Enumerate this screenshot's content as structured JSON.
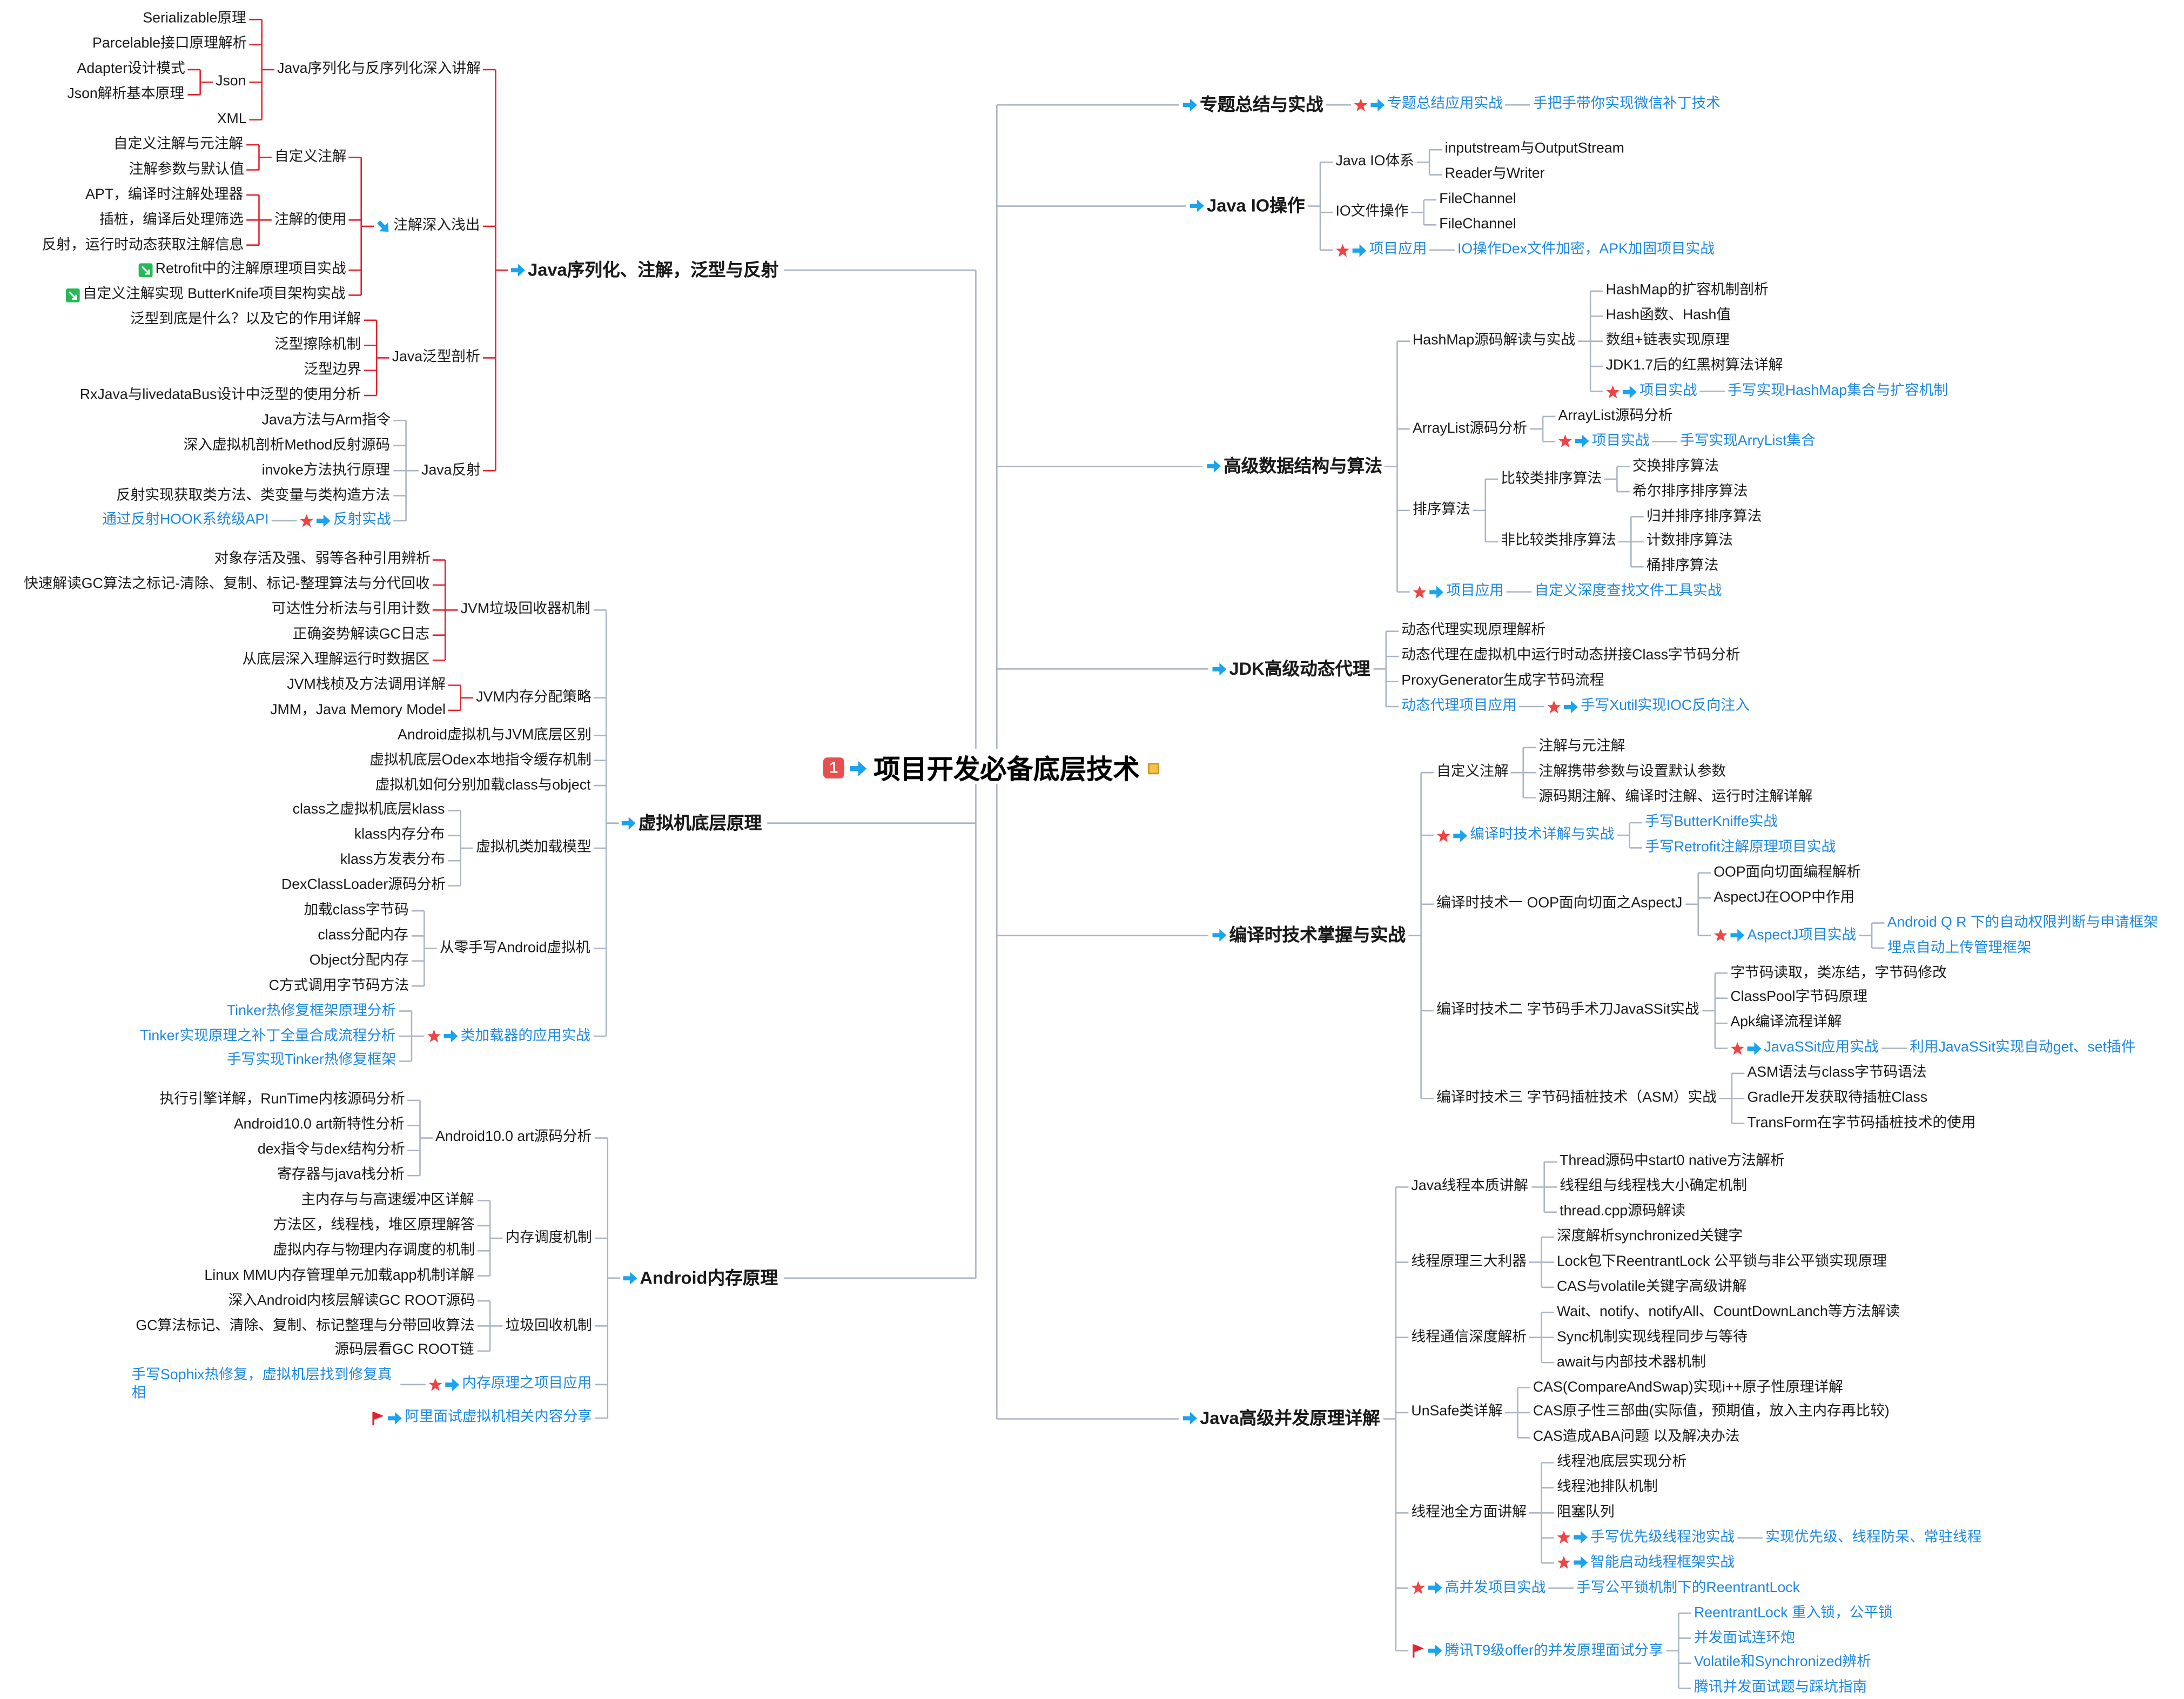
{
  "root": {
    "text": "项目开发必备底层技术",
    "priority": "1",
    "note_icon": "note-icon"
  },
  "colors": {
    "link": "#1e88e5",
    "line": "#aab4c5",
    "bracket_red": "#e3212d",
    "arrow": "#1aa3ee",
    "star": "#ef4444",
    "flag": "#e3212d",
    "green": "#22bb55"
  },
  "right": [
    {
      "text": "专题总结与实战",
      "icon": [
        "arrow"
      ],
      "children": [
        {
          "text": "专题总结应用实战",
          "icon": [
            "star",
            "arrow"
          ],
          "link": true,
          "children": [
            {
              "text": "手把手带你实现微信补丁技术",
              "link": true
            }
          ]
        }
      ]
    },
    {
      "text": "Java IO操作",
      "icon": [
        "arrow"
      ],
      "children": [
        {
          "text": "Java IO体系",
          "children": [
            {
              "text": "inputstream与OutputStream"
            },
            {
              "text": "Reader与Writer"
            }
          ]
        },
        {
          "text": "IO文件操作",
          "children": [
            {
              "text": "FileChannel"
            },
            {
              "text": "FileChannel"
            }
          ]
        },
        {
          "text": "项目应用",
          "icon": [
            "star",
            "arrow"
          ],
          "link": true,
          "children": [
            {
              "text": "IO操作Dex文件加密，APK加固项目实战",
              "link": true
            }
          ]
        }
      ]
    },
    {
      "text": "高级数据结构与算法",
      "icon": [
        "arrow"
      ],
      "children": [
        {
          "text": "HashMap源码解读与实战",
          "children": [
            {
              "text": "HashMap的扩容机制剖析"
            },
            {
              "text": "Hash函数、Hash值"
            },
            {
              "text": "数组+链表实现原理"
            },
            {
              "text": "JDK1.7后的红黑树算法详解"
            },
            {
              "text": "项目实战",
              "icon": [
                "star",
                "arrow"
              ],
              "link": true,
              "children": [
                {
                  "text": "手写实现HashMap集合与扩容机制",
                  "link": true
                }
              ]
            }
          ]
        },
        {
          "text": "ArrayList源码分析",
          "children": [
            {
              "text": "ArrayList源码分析"
            },
            {
              "text": "项目实战",
              "icon": [
                "star",
                "arrow"
              ],
              "link": true,
              "children": [
                {
                  "text": "手写实现ArryList集合",
                  "link": true
                }
              ]
            }
          ]
        },
        {
          "text": "排序算法",
          "children": [
            {
              "text": "比较类排序算法",
              "children": [
                {
                  "text": "交换排序算法"
                },
                {
                  "text": "希尔排序排序算法"
                }
              ]
            },
            {
              "text": "非比较类排序算法",
              "children": [
                {
                  "text": "归并排序排序算法"
                },
                {
                  "text": "计数排序算法"
                },
                {
                  "text": "桶排序算法"
                }
              ]
            }
          ]
        },
        {
          "text": "项目应用",
          "icon": [
            "star",
            "arrow"
          ],
          "link": true,
          "children": [
            {
              "text": "自定义深度查找文件工具实战",
              "link": true
            }
          ]
        }
      ]
    },
    {
      "text": "JDK高级动态代理",
      "icon": [
        "arrow"
      ],
      "children": [
        {
          "text": "动态代理实现原理解析"
        },
        {
          "text": "动态代理在虚拟机中运行时动态拼接Class字节码分析"
        },
        {
          "text": "ProxyGenerator生成字节码流程"
        },
        {
          "text": "动态代理项目应用",
          "link": true,
          "children": [
            {
              "text": "手写Xutil实现IOC反向注入",
              "icon": [
                "star",
                "arrow"
              ],
              "link": true
            }
          ]
        }
      ]
    },
    {
      "text": "编译时技术掌握与实战",
      "icon": [
        "arrow"
      ],
      "children": [
        {
          "text": "自定义注解",
          "children": [
            {
              "text": "注解与元注解"
            },
            {
              "text": "注解携带参数与设置默认参数"
            },
            {
              "text": "源码期注解、编译时注解、运行时注解详解"
            }
          ]
        },
        {
          "text": "编译时技术详解与实战",
          "icon": [
            "star",
            "arrow"
          ],
          "link": true,
          "children": [
            {
              "text": "手写ButterKniffe实战",
              "link": true
            },
            {
              "text": "手写Retrofit注解原理项目实战",
              "link": true
            }
          ]
        },
        {
          "text": "编译时技术一 OOP面向切面之AspectJ",
          "children": [
            {
              "text": "OOP面向切面编程解析"
            },
            {
              "text": "AspectJ在OOP中作用"
            },
            {
              "text": "AspectJ项目实战",
              "icon": [
                "star",
                "arrow"
              ],
              "link": true,
              "children": [
                {
                  "text": "Android Q R 下的自动权限判断与申请框架",
                  "link": true
                },
                {
                  "text": "埋点自动上传管理框架",
                  "link": true
                }
              ]
            }
          ]
        },
        {
          "text": "编译时技术二 字节码手术刀JavaSSit实战",
          "children": [
            {
              "text": "字节码读取，类冻结，字节码修改"
            },
            {
              "text": "ClassPool字节码原理"
            },
            {
              "text": "Apk编译流程详解"
            },
            {
              "text": "JavaSSit应用实战",
              "icon": [
                "star",
                "arrow"
              ],
              "link": true,
              "children": [
                {
                  "text": "利用JavaSSit实现自动get、set插件",
                  "link": true
                }
              ]
            }
          ]
        },
        {
          "text": "编译时技术三 字节码插桩技术（ASM）实战",
          "children": [
            {
              "text": "ASM语法与class字节码语法"
            },
            {
              "text": "Gradle开发获取待插桩Class"
            },
            {
              "text": "TransForm在字节码插桩技术的使用"
            }
          ]
        }
      ]
    },
    {
      "text": "Java高级并发原理详解",
      "icon": [
        "arrow"
      ],
      "children": [
        {
          "text": "Java线程本质讲解",
          "children": [
            {
              "text": "Thread源码中start0  native方法解析"
            },
            {
              "text": "线程组与线程栈大小确定机制"
            },
            {
              "text": "thread.cpp源码解读"
            }
          ]
        },
        {
          "text": "线程原理三大利器",
          "children": [
            {
              "text": "深度解析synchronized关键字"
            },
            {
              "text": "Lock包下ReentrantLock 公平锁与非公平锁实现原理"
            },
            {
              "text": "CAS与volatile关键字高级讲解"
            }
          ]
        },
        {
          "text": "线程通信深度解析",
          "children": [
            {
              "text": "Wait、notify、notifyAll、CountDownLanch等方法解读"
            },
            {
              "text": "Sync机制实现线程同步与等待"
            },
            {
              "text": "await与内部技术器机制"
            }
          ]
        },
        {
          "text": "UnSafe类详解",
          "children": [
            {
              "text": "CAS(CompareAndSwap)实现i++原子性原理详解"
            },
            {
              "text": "CAS原子性三部曲(实际值，预期值，放入主内存再比较)"
            },
            {
              "text": "CAS造成ABA问题  以及解决办法"
            }
          ]
        },
        {
          "text": "线程池全方面讲解",
          "children": [
            {
              "text": "线程池底层实现分析"
            },
            {
              "text": "线程池排队机制"
            },
            {
              "text": "阻塞队列"
            },
            {
              "text": "手写优先级线程池实战",
              "icon": [
                "star",
                "arrow"
              ],
              "link": true,
              "children": [
                {
                  "text": "实现优先级、线程防呆、常驻线程",
                  "link": true
                }
              ]
            },
            {
              "text": "智能启动线程框架实战",
              "icon": [
                "star",
                "arrow"
              ],
              "link": true
            }
          ]
        },
        {
          "text": "高并发项目实战",
          "icon": [
            "star",
            "arrow"
          ],
          "link": true,
          "children": [
            {
              "text": "手写公平锁机制下的ReentrantLock",
              "link": true
            }
          ]
        },
        {
          "text": "腾讯T9级offer的并发原理面试分享",
          "icon": [
            "flag",
            "arrow"
          ],
          "link": true,
          "children": [
            {
              "text": "ReentrantLock 重入锁，公平锁",
              "link": true
            },
            {
              "text": "并发面试连环炮",
              "link": true
            },
            {
              "text": "Volatile和Synchronized辨析",
              "link": true
            },
            {
              "text": "腾讯并发面试题与踩坑指南",
              "link": true
            }
          ]
        }
      ]
    }
  ],
  "left": [
    {
      "text": "Java序列化、注解，泛型与反射",
      "icon": [
        "arrow"
      ],
      "bracket": "#e3212d",
      "children": [
        {
          "text": "Java序列化与反序列化深入讲解",
          "bracket": "#e3212d",
          "children": [
            {
              "text": "Serializable原理"
            },
            {
              "text": "Parcelable接口原理解析"
            },
            {
              "text": "Json",
              "bracket": "#e3212d",
              "children": [
                {
                  "text": "Adapter设计模式"
                },
                {
                  "text": "Json解析基本原理"
                }
              ]
            },
            {
              "text": "XML"
            }
          ]
        },
        {
          "text": "注解深入浅出",
          "icon": [
            "down-arrow"
          ],
          "bracket": "#e3212d",
          "children": [
            {
              "text": "自定义注解",
              "bracket": "#e3212d",
              "children": [
                {
                  "text": "自定义注解与元注解"
                },
                {
                  "text": "注解参数与默认值"
                }
              ]
            },
            {
              "text": "注解的使用",
              "bracket": "#e3212d",
              "children": [
                {
                  "text": "APT，编译时注解处理器"
                },
                {
                  "text": "插桩，编译后处理筛选"
                },
                {
                  "text": "反射，运行时动态获取注解信息"
                }
              ]
            },
            {
              "text": "Retrofit中的注解原理项目实战",
              "icon": [
                "green"
              ]
            },
            {
              "text": "自定义注解实现 ButterKnife项目架构实战",
              "icon": [
                "green"
              ]
            }
          ]
        },
        {
          "text": "Java泛型剖析",
          "bracket": "#e3212d",
          "children": [
            {
              "text": "泛型到底是什么？以及它的作用详解"
            },
            {
              "text": "泛型擦除机制"
            },
            {
              "text": "泛型边界"
            },
            {
              "text": "RxJava与livedataBus设计中泛型的使用分析"
            }
          ]
        },
        {
          "text": "Java反射",
          "children": [
            {
              "text": "Java方法与Arm指令"
            },
            {
              "text": "深入虚拟机剖析Method反射源码"
            },
            {
              "text": "invoke方法执行原理"
            },
            {
              "text": "反射实现获取类方法、类变量与类构造方法"
            },
            {
              "text": "反射实战",
              "icon": [
                "star",
                "arrow"
              ],
              "link": true,
              "children": [
                {
                  "text": "通过反射HOOK系统级API",
                  "link": true
                }
              ]
            }
          ]
        }
      ]
    },
    {
      "text": "虚拟机底层原理",
      "icon": [
        "arrow"
      ],
      "children": [
        {
          "text": "JVM垃圾回收器机制",
          "bracket": "#e3212d",
          "children": [
            {
              "text": "对象存活及强、弱等各种引用辨析"
            },
            {
              "text": "快速解读GC算法之标记-清除、复制、标记-整理算法与分代回收"
            },
            {
              "text": "可达性分析法与引用计数"
            },
            {
              "text": "正确姿势解读GC日志"
            },
            {
              "text": "从底层深入理解运行时数据区"
            }
          ]
        },
        {
          "text": "JVM内存分配策略",
          "bracket": "#e3212d",
          "children": [
            {
              "text": "JVM栈桢及方法调用详解"
            },
            {
              "text": "JMM，Java Memory Model"
            }
          ]
        },
        {
          "text": "Android虚拟机与JVM底层区别"
        },
        {
          "text": "虚拟机底层Odex本地指令缓存机制"
        },
        {
          "text": "虚拟机如何分别加载class与object"
        },
        {
          "text": "虚拟机类加载模型",
          "children": [
            {
              "text": "class之虚拟机底层klass"
            },
            {
              "text": "klass内存分布"
            },
            {
              "text": "klass方发表分布"
            },
            {
              "text": "DexClassLoader源码分析"
            }
          ]
        },
        {
          "text": "从零手写Android虚拟机",
          "children": [
            {
              "text": "加载class字节码"
            },
            {
              "text": "class分配内存"
            },
            {
              "text": "Object分配内存"
            },
            {
              "text": "C方式调用字节码方法"
            }
          ]
        },
        {
          "text": "类加载器的应用实战",
          "icon": [
            "star",
            "arrow"
          ],
          "link": true,
          "children": [
            {
              "text": "Tinker热修复框架原理分析",
              "link": true
            },
            {
              "text": "Tinker实现原理之补丁全量合成流程分析",
              "link": true
            },
            {
              "text": "手写实现Tinker热修复框架",
              "link": true
            }
          ]
        }
      ]
    },
    {
      "text": "Android内存原理",
      "icon": [
        "arrow"
      ],
      "children": [
        {
          "text": "Android10.0 art源码分析",
          "children": [
            {
              "text": "执行引擎详解，RunTime内核源码分析"
            },
            {
              "text": "Android10.0 art新特性分析"
            },
            {
              "text": "dex指令与dex结构分析"
            },
            {
              "text": "寄存器与java栈分析"
            }
          ]
        },
        {
          "text": "内存调度机制",
          "children": [
            {
              "text": "主内存与与高速缓冲区详解"
            },
            {
              "text": "方法区，线程栈，堆区原理解答"
            },
            {
              "text": "虚拟内存与物理内存调度的机制"
            },
            {
              "text": "Linux  MMU内存管理单元加载app机制详解"
            }
          ]
        },
        {
          "text": "垃圾回收机制",
          "children": [
            {
              "text": "深入Android内核层解读GC ROOT源码"
            },
            {
              "text": "GC算法标记、清除、复制、标记整理与分带回收算法"
            },
            {
              "text": "源码层看GC ROOT链"
            }
          ]
        },
        {
          "text": "内存原理之项目应用",
          "icon": [
            "star",
            "arrow"
          ],
          "link": true,
          "children": [
            {
              "text": "手写Sophix热修复，虚拟机层找到修复真相",
              "link": true,
              "wrap": true
            }
          ]
        },
        {
          "text": "阿里面试虚拟机相关内容分享",
          "icon": [
            "flag",
            "arrow"
          ],
          "link": true
        }
      ]
    }
  ]
}
